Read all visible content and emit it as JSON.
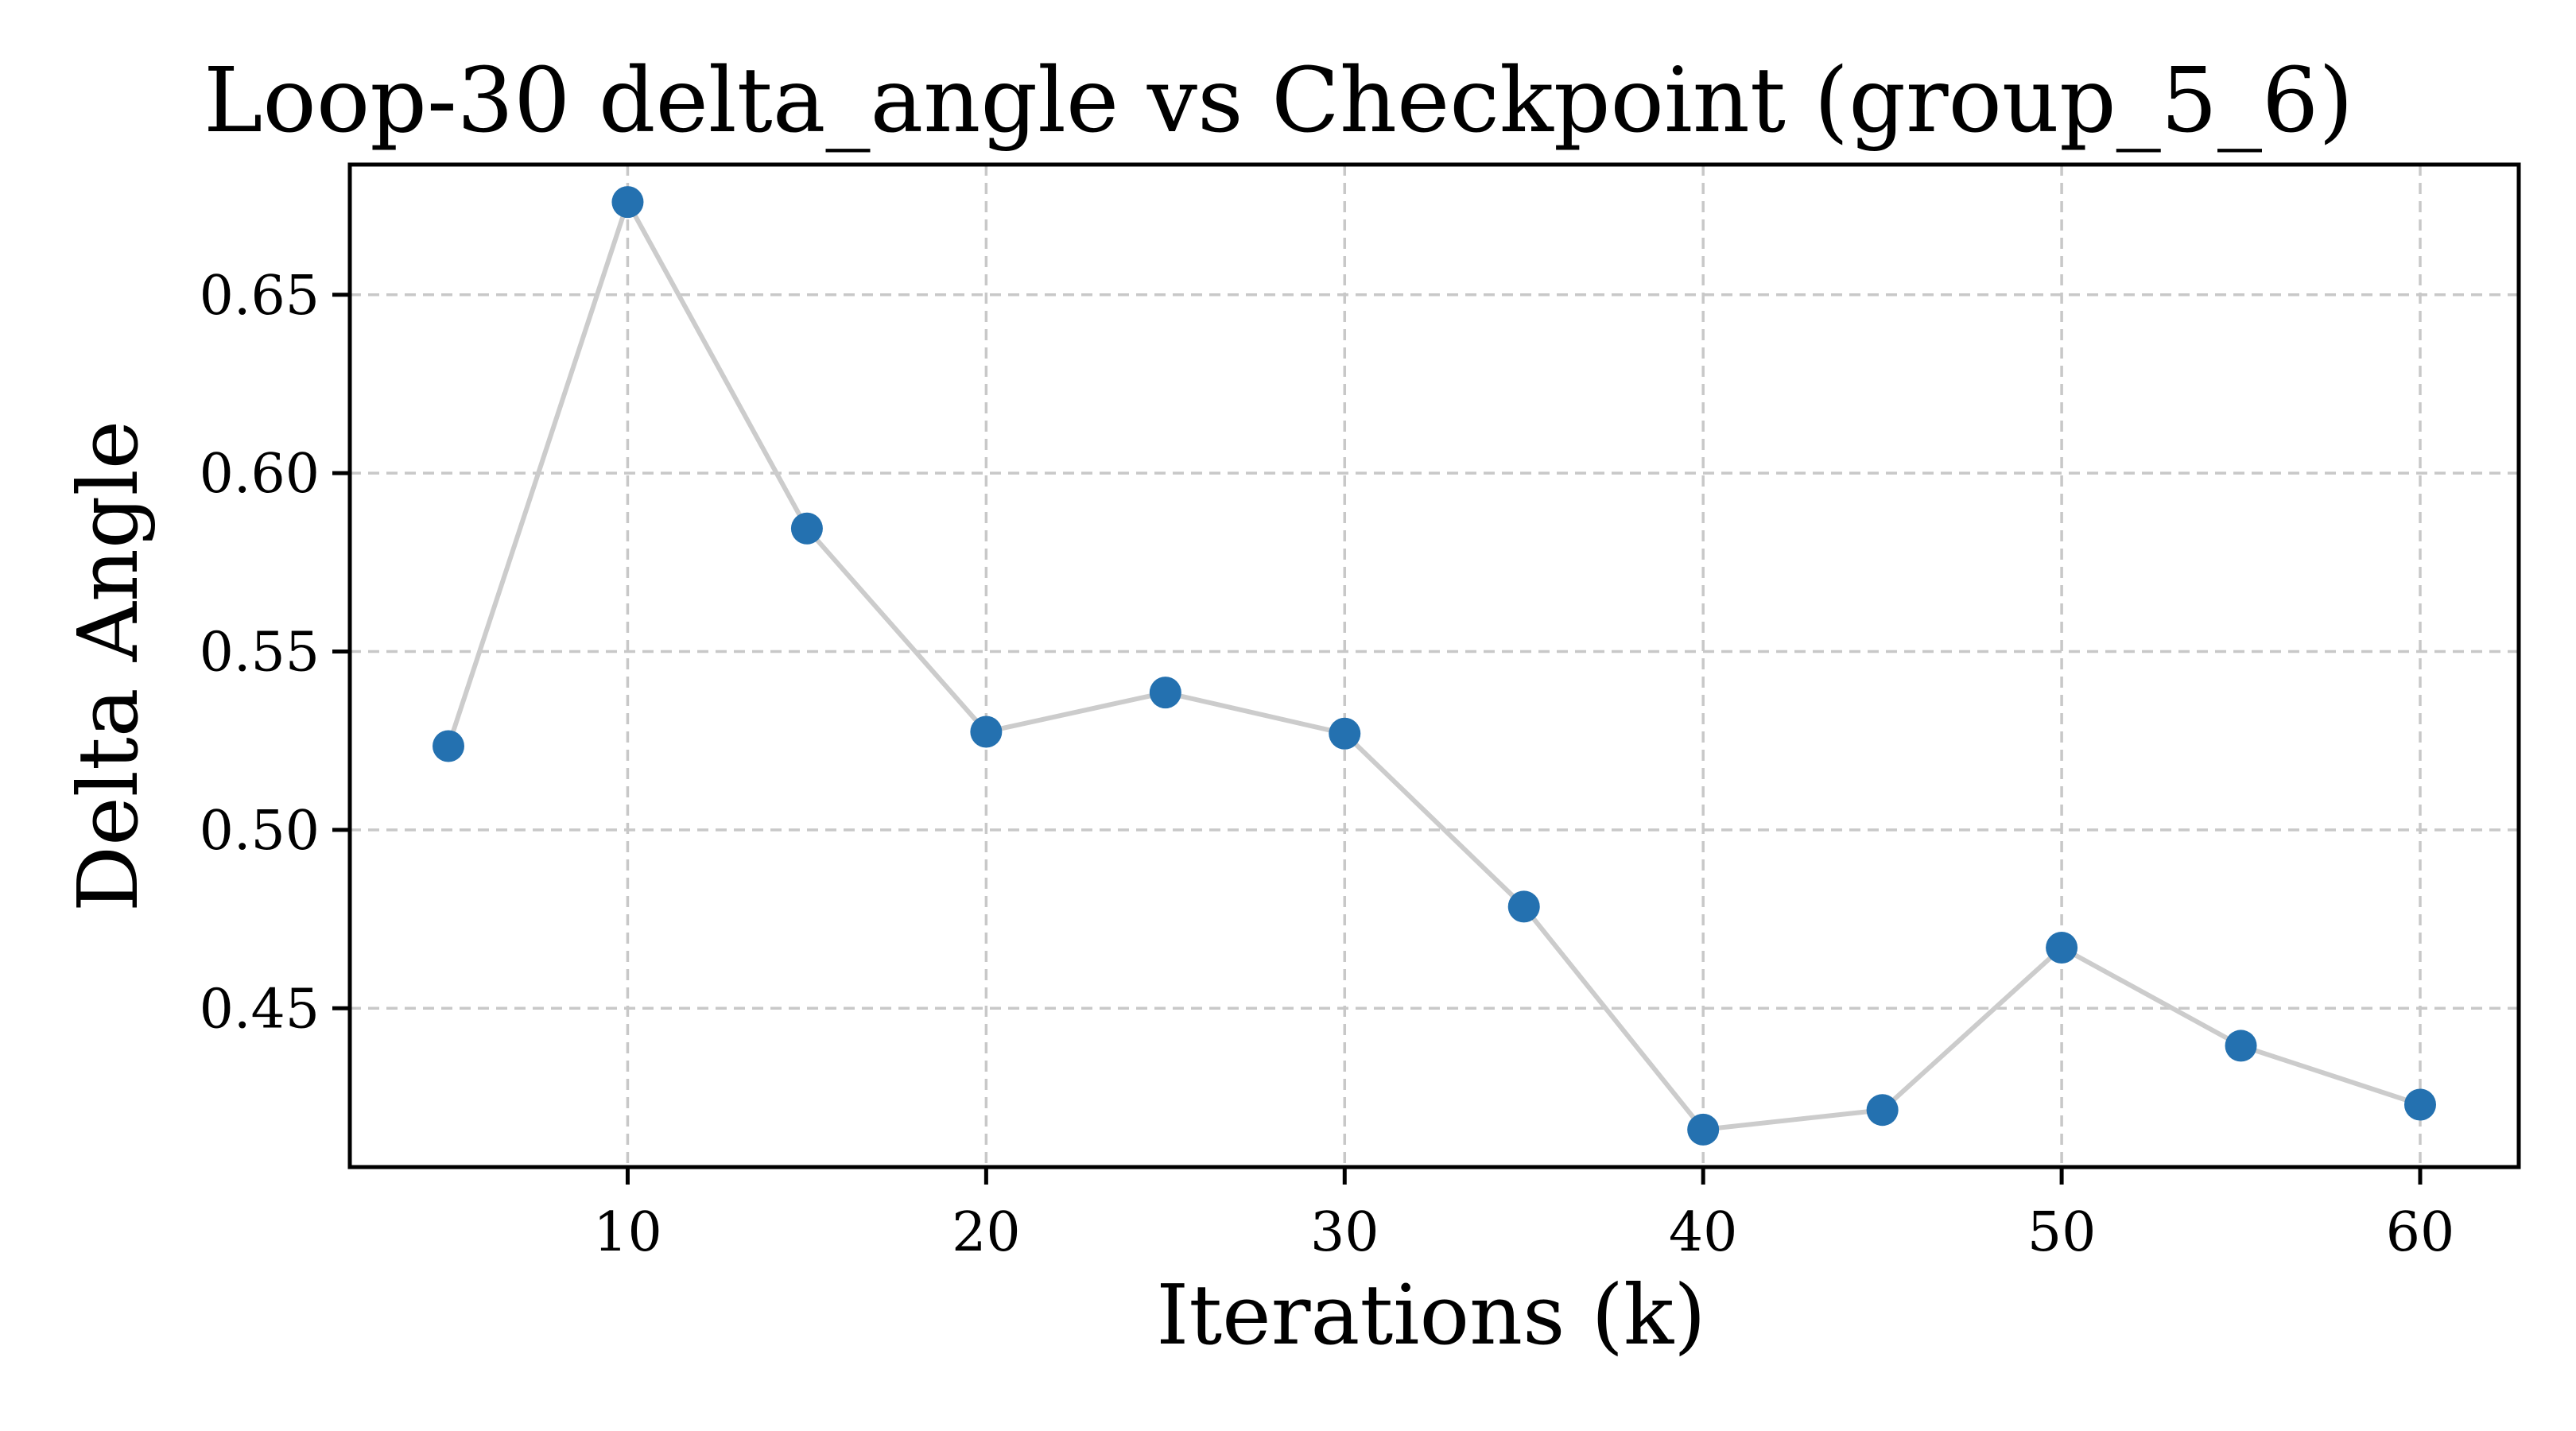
{
  "chart_data": {
    "type": "line",
    "title": "Loop-30 delta_angle vs Checkpoint (group_5_6)",
    "xlabel": "Iterations (k)",
    "ylabel": "Delta Angle",
    "x": [
      5,
      10,
      15,
      20,
      25,
      30,
      35,
      40,
      45,
      50,
      55,
      60
    ],
    "series": [
      {
        "values": [
          0.5235,
          0.676,
          0.5845,
          0.5275,
          0.5385,
          0.527,
          0.4785,
          0.416,
          0.4215,
          0.467,
          0.4395,
          0.423
        ]
      }
    ],
    "xlim": [
      2.25,
      62.75
    ],
    "ylim": [
      0.4055,
      0.6865
    ],
    "xticks": [
      10,
      20,
      30,
      40,
      50,
      60
    ],
    "xtick_labels": [
      "10",
      "20",
      "30",
      "40",
      "50",
      "60"
    ],
    "yticks": [
      0.45,
      0.5,
      0.55,
      0.6,
      0.65
    ],
    "ytick_labels": [
      "0.45",
      "0.50",
      "0.55",
      "0.60",
      "0.65"
    ],
    "grid": true,
    "line_color": "#cccccc",
    "marker_color": "#2471b0"
  }
}
